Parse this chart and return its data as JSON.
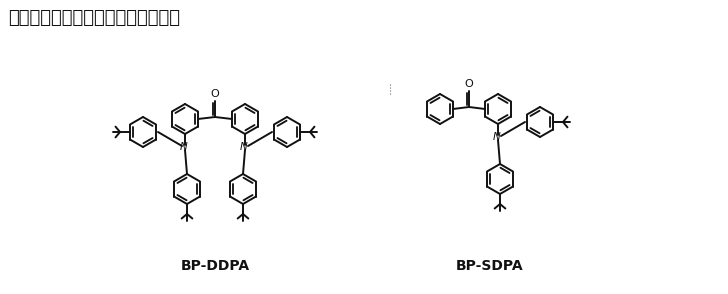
{
  "title": "含二苯甲酮的蓝色荧光材料的结构式",
  "label_left": "BP-DDPA",
  "label_right": "BP-SDPA",
  "bg_color": "#ffffff",
  "text_color": "#000000",
  "title_fontsize": 13,
  "label_fontsize": 10,
  "line_color": "#111111",
  "line_width": 1.4
}
